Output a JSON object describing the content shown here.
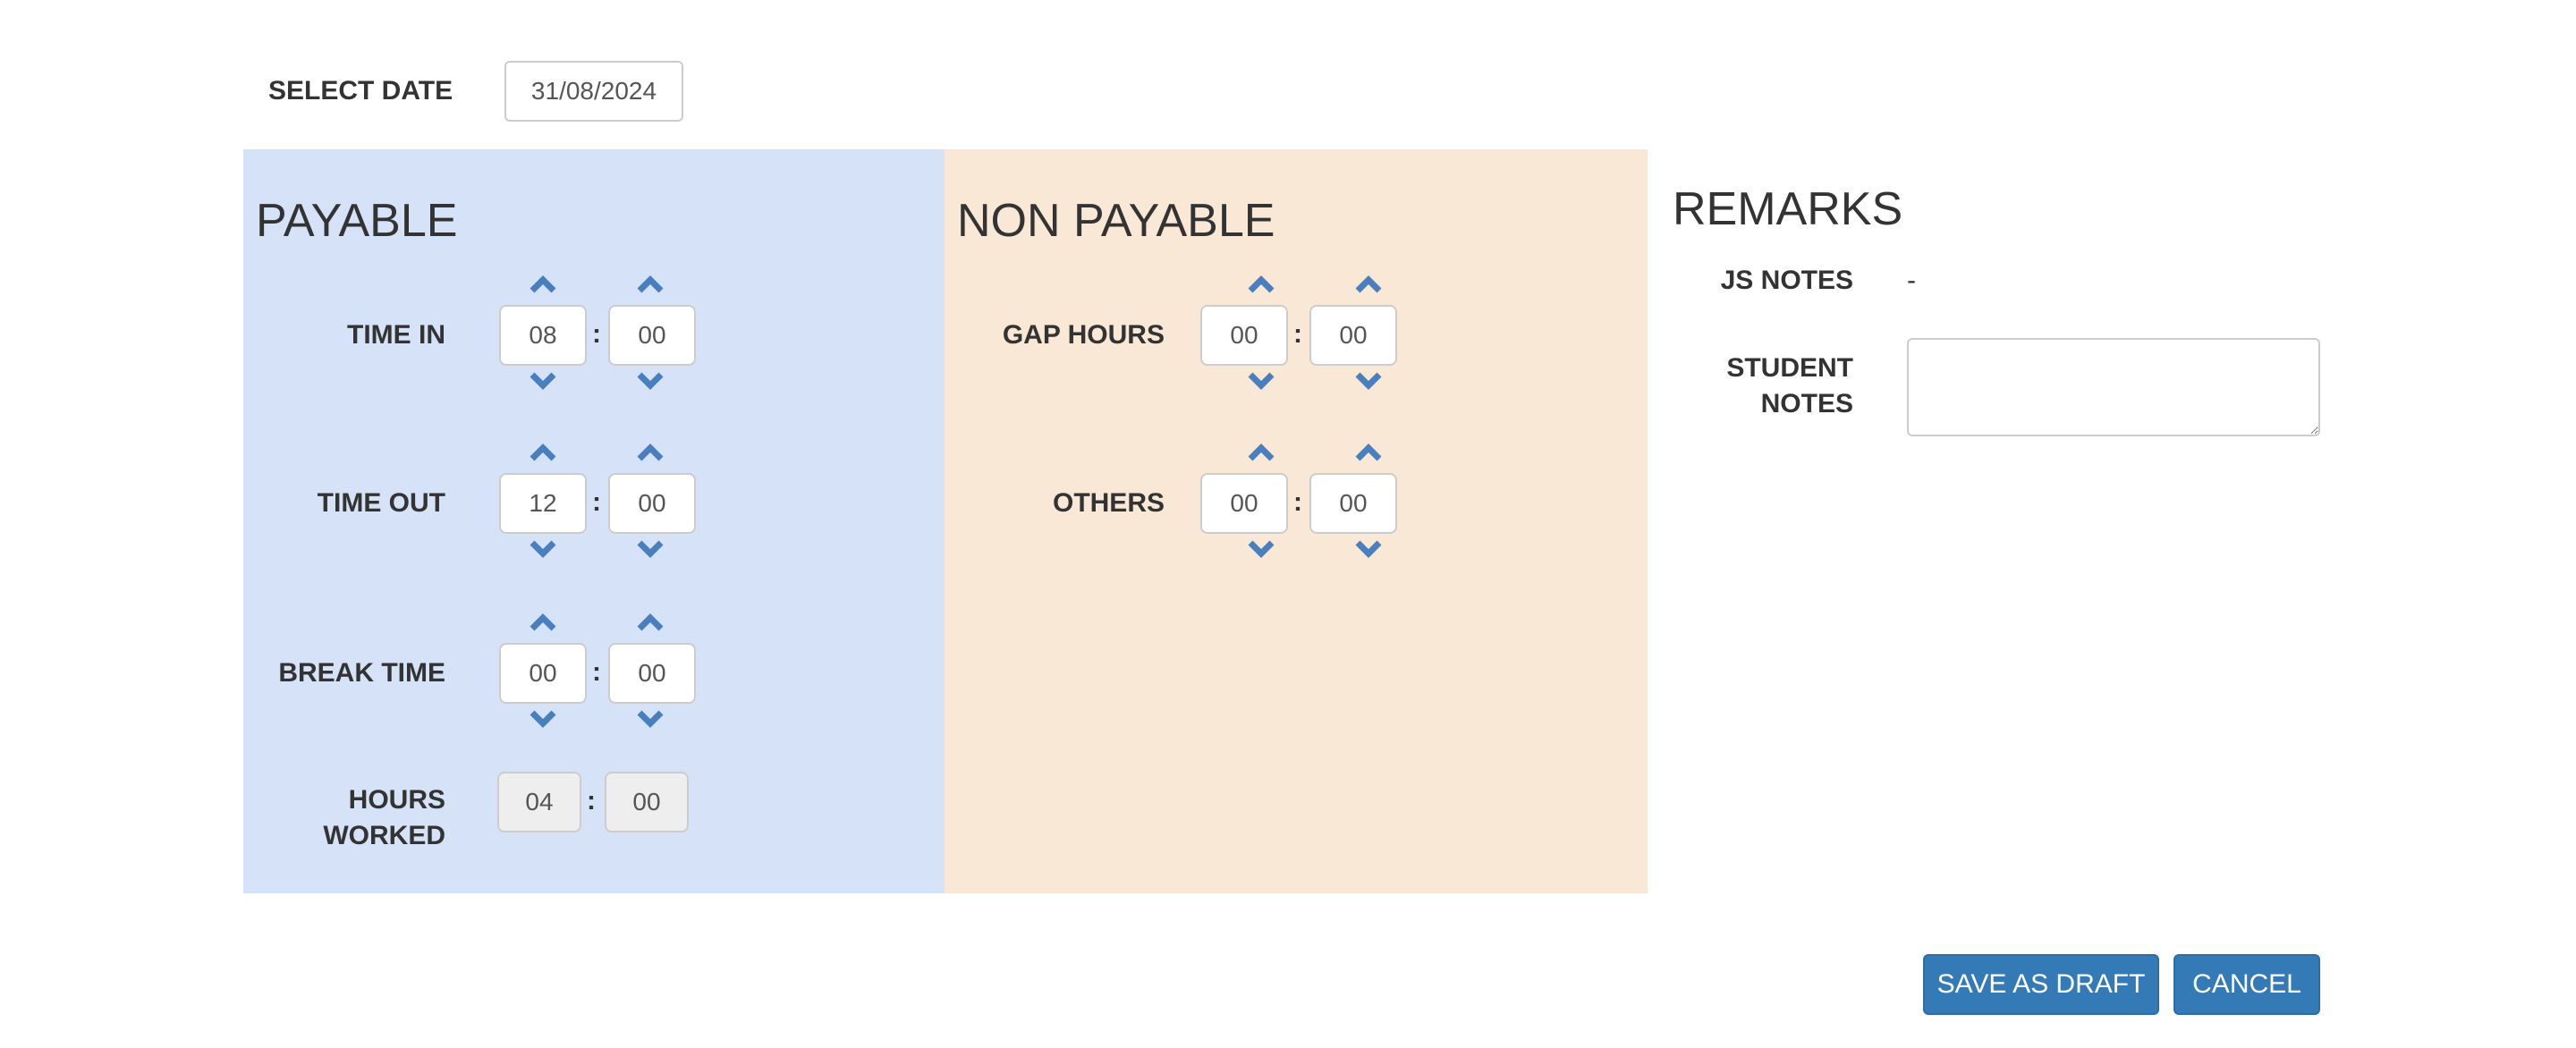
{
  "select_date": {
    "label": "SELECT DATE",
    "value": "31/08/2024"
  },
  "payable": {
    "title": "PAYABLE",
    "time_in": {
      "label": "TIME IN",
      "hours": "08",
      "minutes": "00"
    },
    "time_out": {
      "label": "TIME OUT",
      "hours": "12",
      "minutes": "00"
    },
    "break_time": {
      "label": "BREAK TIME",
      "hours": "00",
      "minutes": "00"
    },
    "hours_worked": {
      "label_line1": "HOURS",
      "label_line2": "WORKED",
      "hours": "04",
      "minutes": "00"
    }
  },
  "non_payable": {
    "title": "NON PAYABLE",
    "gap_hours": {
      "label": "GAP HOURS",
      "hours": "00",
      "minutes": "00"
    },
    "others": {
      "label": "OTHERS",
      "hours": "00",
      "minutes": "00"
    }
  },
  "remarks": {
    "title": "REMARKS",
    "js_notes": {
      "label": "JS NOTES",
      "value": "-"
    },
    "student_notes": {
      "label_line1": "STUDENT",
      "label_line2": "NOTES",
      "value": ""
    }
  },
  "separator": ":",
  "actions": {
    "save_draft": "SAVE AS DRAFT",
    "cancel": "CANCEL"
  },
  "colors": {
    "payable_bg": "#d6e2f7",
    "non_payable_bg": "#f9e8d6",
    "button": "#337ab7",
    "chevron": "#4a7fbf"
  }
}
